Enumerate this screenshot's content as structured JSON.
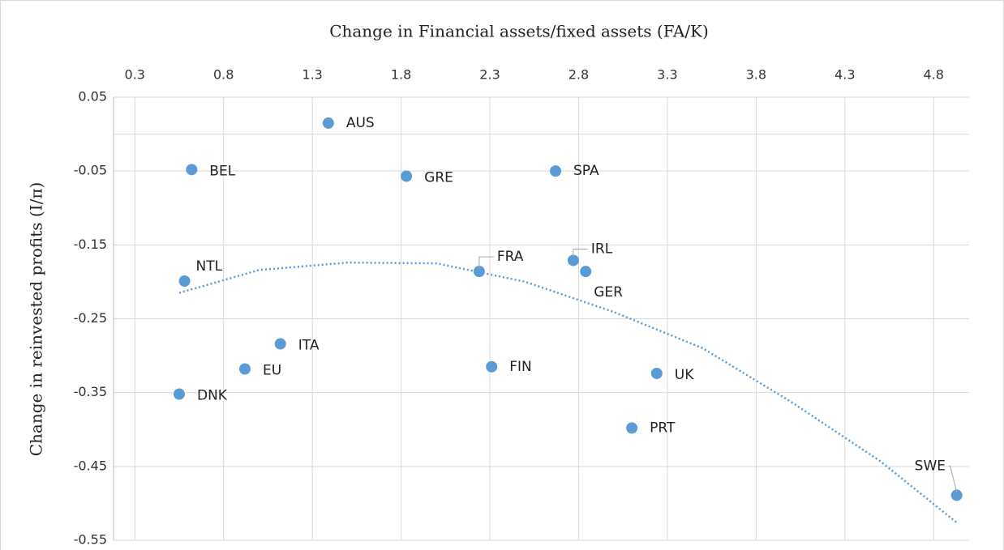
{
  "chart_data": {
    "type": "scatter",
    "x_label": "Change in Financial assets/fixed assets (FA/K)",
    "y_label": "Change in reinvested profits (I/π)",
    "xlim": [
      0.18,
      5.0
    ],
    "xticks": [
      0.3,
      0.8,
      1.3,
      1.8,
      2.3,
      2.8,
      3.3,
      3.8,
      4.3,
      4.8
    ],
    "ylim": [
      -0.55,
      0.05
    ],
    "yticks": [
      0.05,
      -0.05,
      -0.15,
      -0.25,
      -0.35,
      -0.45,
      -0.55
    ],
    "grid": true,
    "color": "#5b9bd5",
    "labels": [
      "AUS",
      "BEL",
      "GRE",
      "SPA",
      "NTL",
      "FRA",
      "IRL",
      "GER",
      "ITA",
      "EU",
      "FIN",
      "UK",
      "DNK",
      "PRT",
      "SWE"
    ],
    "x": [
      1.39,
      0.62,
      1.83,
      2.67,
      0.58,
      2.24,
      2.77,
      2.84,
      1.12,
      0.92,
      2.31,
      3.24,
      0.55,
      3.1,
      4.93
    ],
    "y": [
      0.015,
      -0.048,
      -0.057,
      -0.05,
      -0.199,
      -0.186,
      -0.171,
      -0.186,
      -0.284,
      -0.318,
      -0.315,
      -0.324,
      -0.352,
      -0.398,
      -0.489
    ],
    "trendline": {
      "x": [
        0.55,
        1.0,
        1.5,
        2.0,
        2.5,
        3.0,
        3.5,
        4.0,
        4.5,
        4.93
      ],
      "y": [
        -0.215,
        -0.184,
        -0.174,
        -0.175,
        -0.2,
        -0.241,
        -0.29,
        -0.363,
        -0.443,
        -0.526
      ]
    }
  }
}
